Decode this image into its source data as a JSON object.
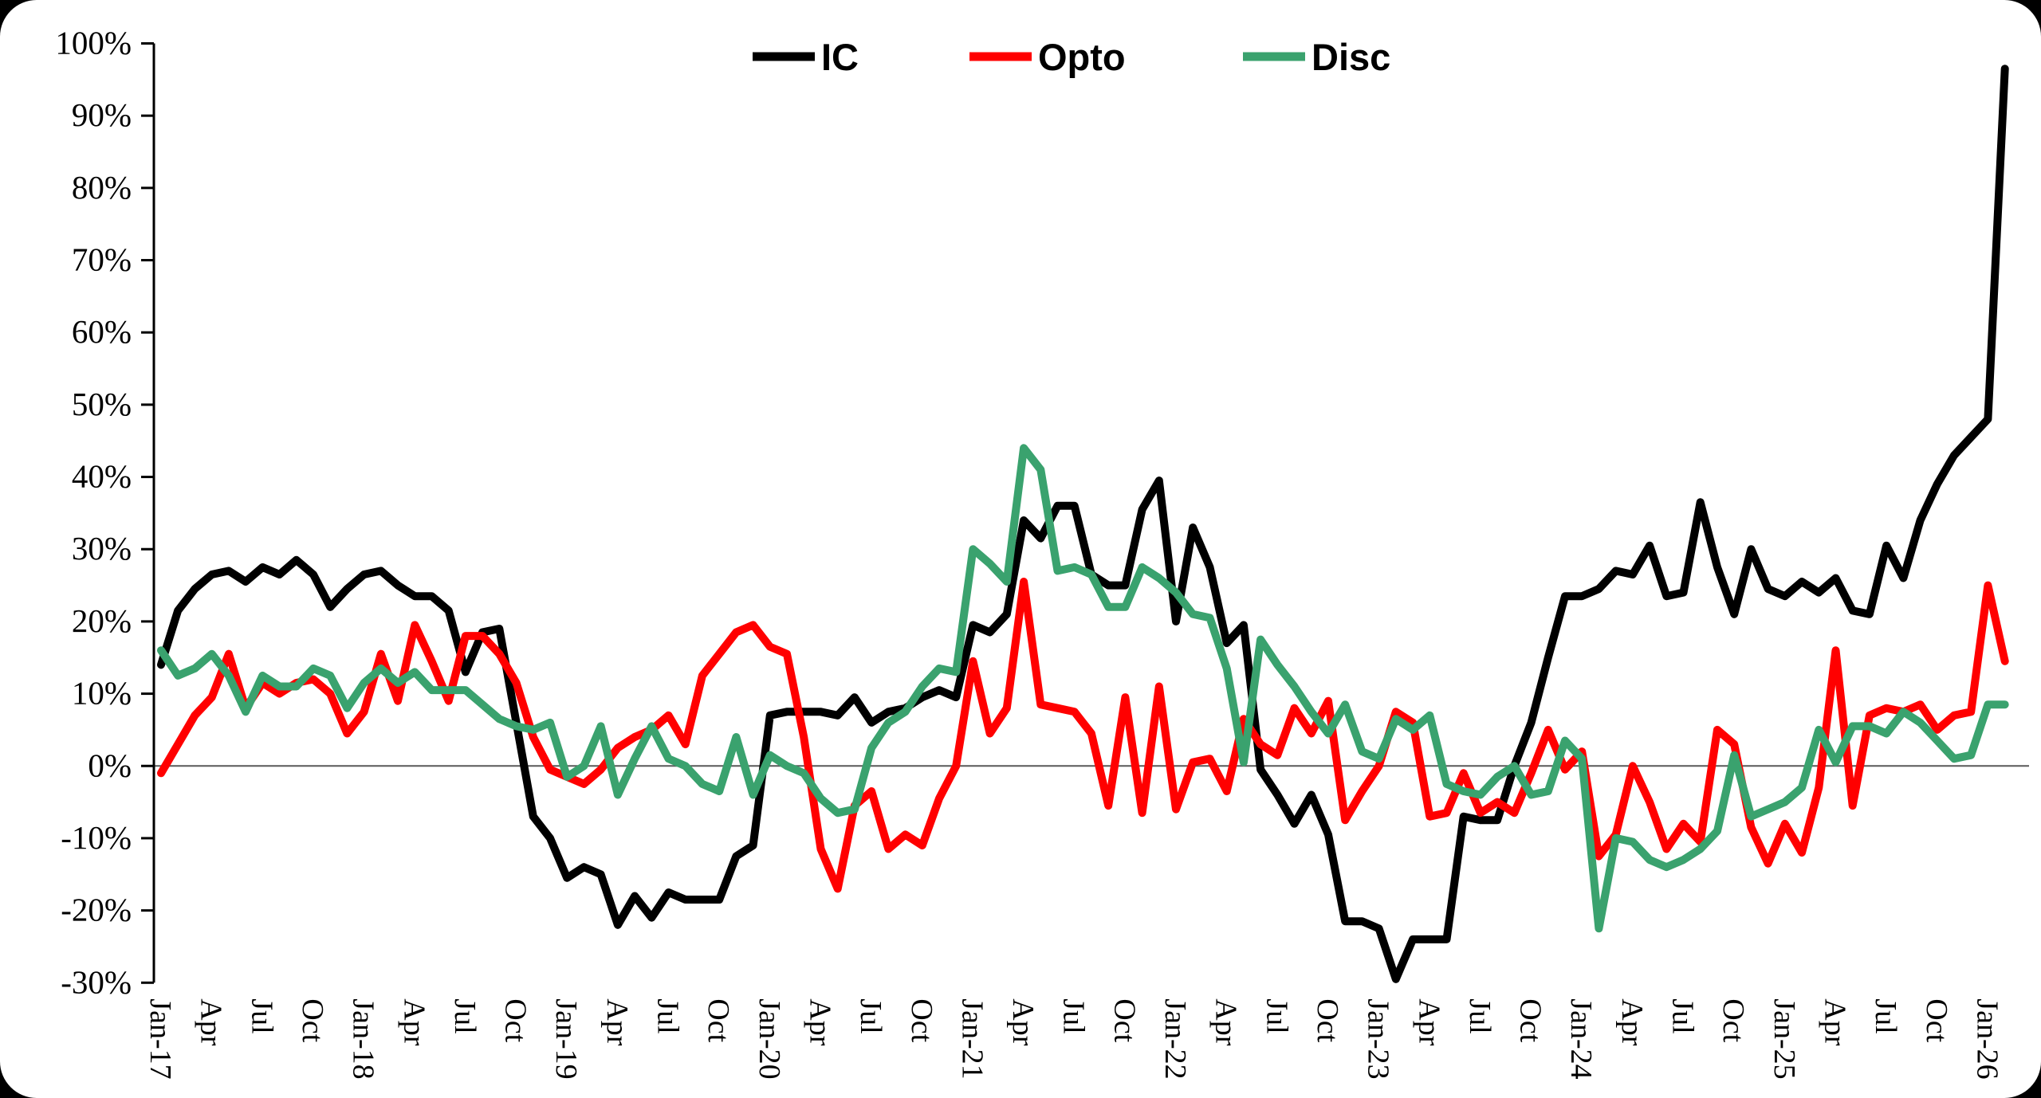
{
  "colors": {
    "background": "#ffffff",
    "outer_background": "#000000",
    "axis": "#000000",
    "zero_line": "#595959",
    "ic": "#000000",
    "opto": "#ff0000",
    "disc": "#3aa26e"
  },
  "legend": {
    "position": "top-center",
    "items": [
      {
        "label": "IC",
        "color": "#000000"
      },
      {
        "label": "Opto",
        "color": "#ff0000"
      },
      {
        "label": "Disc",
        "color": "#3aa26e"
      }
    ]
  },
  "chart_data": {
    "type": "line",
    "title": "",
    "xlabel": "",
    "ylabel": "",
    "x_axis": {
      "unit": "month",
      "start": "Jan-2017",
      "end": "Feb-2026",
      "points": 110,
      "tick_every_months": 3,
      "tick_labels": [
        "Jan-17",
        "Apr",
        "Jul",
        "Oct",
        "Jan-18",
        "Apr",
        "Jul",
        "Oct",
        "Jan-19",
        "Apr",
        "Jul",
        "Oct",
        "Jan-20",
        "Apr",
        "Jul",
        "Oct",
        "Jan-21",
        "Apr",
        "Jul",
        "Oct",
        "Jan-22",
        "Apr",
        "Jul",
        "Oct",
        "Jan-23",
        "Apr",
        "Jul",
        "Oct",
        "Jan-24",
        "Apr",
        "Jul",
        "Oct",
        "Jan-25",
        "Apr",
        "Jul",
        "Oct",
        "Jan-26"
      ],
      "label_rotation_deg": 90
    },
    "y_axis": {
      "min": -30,
      "max": 100,
      "step": 10,
      "format": "percent",
      "tick_labels": [
        "100%",
        "90%",
        "80%",
        "70%",
        "60%",
        "50%",
        "40%",
        "30%",
        "20%",
        "10%",
        "0%",
        "-10%",
        "-20%",
        "-30%"
      ]
    },
    "grid": {
      "zero_line": true,
      "other_gridlines": false
    },
    "legend_position": "top-center",
    "series": [
      {
        "name": "IC",
        "color": "#000000",
        "values": [
          14,
          21.5,
          24.5,
          26.5,
          27,
          25.5,
          27.5,
          26.5,
          28.5,
          26.5,
          22,
          24.5,
          26.5,
          27,
          25,
          23.5,
          23.5,
          21.5,
          13,
          18.5,
          19,
          6,
          -7,
          -10,
          -15.5,
          -14,
          -15,
          -22,
          -18,
          -21,
          -17.5,
          -18.5,
          -18.5,
          -18.5,
          -12.5,
          -11,
          7,
          7.5,
          7.5,
          7.5,
          7,
          9.5,
          6,
          7.5,
          8,
          9.5,
          10.5,
          9.5,
          19.5,
          18.5,
          21,
          34,
          31.5,
          36,
          36,
          26.5,
          25,
          25,
          35.5,
          39.5,
          20,
          33,
          27.5,
          17,
          19.5,
          -0.5,
          -4,
          -8,
          -4,
          -9.5,
          -21.5,
          -21.5,
          -22.5,
          -29.5,
          -24,
          -24,
          -24,
          -7,
          -7.5,
          -7.5,
          0,
          6,
          15,
          23.5,
          23.5,
          24.5,
          27,
          26.5,
          30.5,
          23.5,
          24,
          36.5,
          27.5,
          21,
          30,
          24.5,
          23.5,
          25.5,
          24,
          26,
          21.5,
          21,
          30.5,
          26,
          34,
          39,
          43,
          45.5,
          48,
          96.5
        ]
      },
      {
        "name": "Opto",
        "color": "#ff0000",
        "values": [
          -1,
          3,
          7,
          9.5,
          15.5,
          8,
          11.5,
          10,
          11.5,
          12,
          10,
          4.5,
          7.5,
          15.5,
          9,
          19.5,
          14.5,
          9,
          18,
          18,
          15.5,
          11.5,
          4,
          -0.5,
          -1.5,
          -2.5,
          -0.5,
          2.5,
          4,
          5,
          7,
          3,
          12.5,
          15.5,
          18.5,
          19.5,
          16.5,
          15.5,
          4,
          -11.5,
          -17,
          -5.5,
          -3.5,
          -11.5,
          -9.5,
          -11,
          -4.5,
          0,
          14.5,
          4.5,
          8,
          25.5,
          8.5,
          8,
          7.5,
          4.5,
          -5.5,
          9.5,
          -6.5,
          11,
          -6,
          0.5,
          1,
          -3.5,
          6.5,
          3,
          1.5,
          8,
          4.5,
          9,
          -7.5,
          -3.5,
          0,
          7.5,
          6,
          -7,
          -6.5,
          -1,
          -6.5,
          -5,
          -6.5,
          -1,
          5,
          -0.5,
          2,
          -12.5,
          -9.5,
          0,
          -5,
          -11.5,
          -8,
          -10.5,
          5,
          3,
          -8.5,
          -13.5,
          -8,
          -12,
          -3,
          16,
          -5.5,
          7,
          8,
          7.5,
          8.5,
          5,
          7,
          7.5,
          25,
          14.5
        ]
      },
      {
        "name": "Disc",
        "color": "#3aa26e",
        "values": [
          16,
          12.5,
          13.5,
          15.5,
          12.5,
          7.5,
          12.5,
          11,
          11,
          13.5,
          12.5,
          8,
          11.5,
          13.5,
          11.5,
          13,
          10.5,
          10.5,
          10.5,
          8.5,
          6.5,
          5.5,
          5,
          6,
          -1.5,
          0,
          5.5,
          -4,
          1,
          5.5,
          1,
          0,
          -2.5,
          -3.5,
          4,
          -4,
          1.5,
          0,
          -1,
          -4.5,
          -6.5,
          -6,
          2.5,
          6,
          7.5,
          11,
          13.5,
          13,
          30,
          28,
          25.5,
          44,
          41,
          27,
          27.5,
          26.5,
          22,
          22,
          27.5,
          26,
          24,
          21,
          20.5,
          13.5,
          0.5,
          17.5,
          14,
          11,
          7.5,
          4.5,
          8.5,
          2,
          1,
          6.5,
          5,
          7,
          -2.5,
          -3.5,
          -4,
          -1.5,
          0,
          -4,
          -3.5,
          3.5,
          1,
          -22.5,
          -10,
          -10.5,
          -13,
          -14,
          -13,
          -11.5,
          -9,
          1.5,
          -7,
          -6,
          -5,
          -3,
          5,
          0.5,
          5.5,
          5.5,
          4.5,
          7.5,
          6,
          3.5,
          1,
          1.5,
          8.5,
          8.5
        ]
      }
    ]
  }
}
